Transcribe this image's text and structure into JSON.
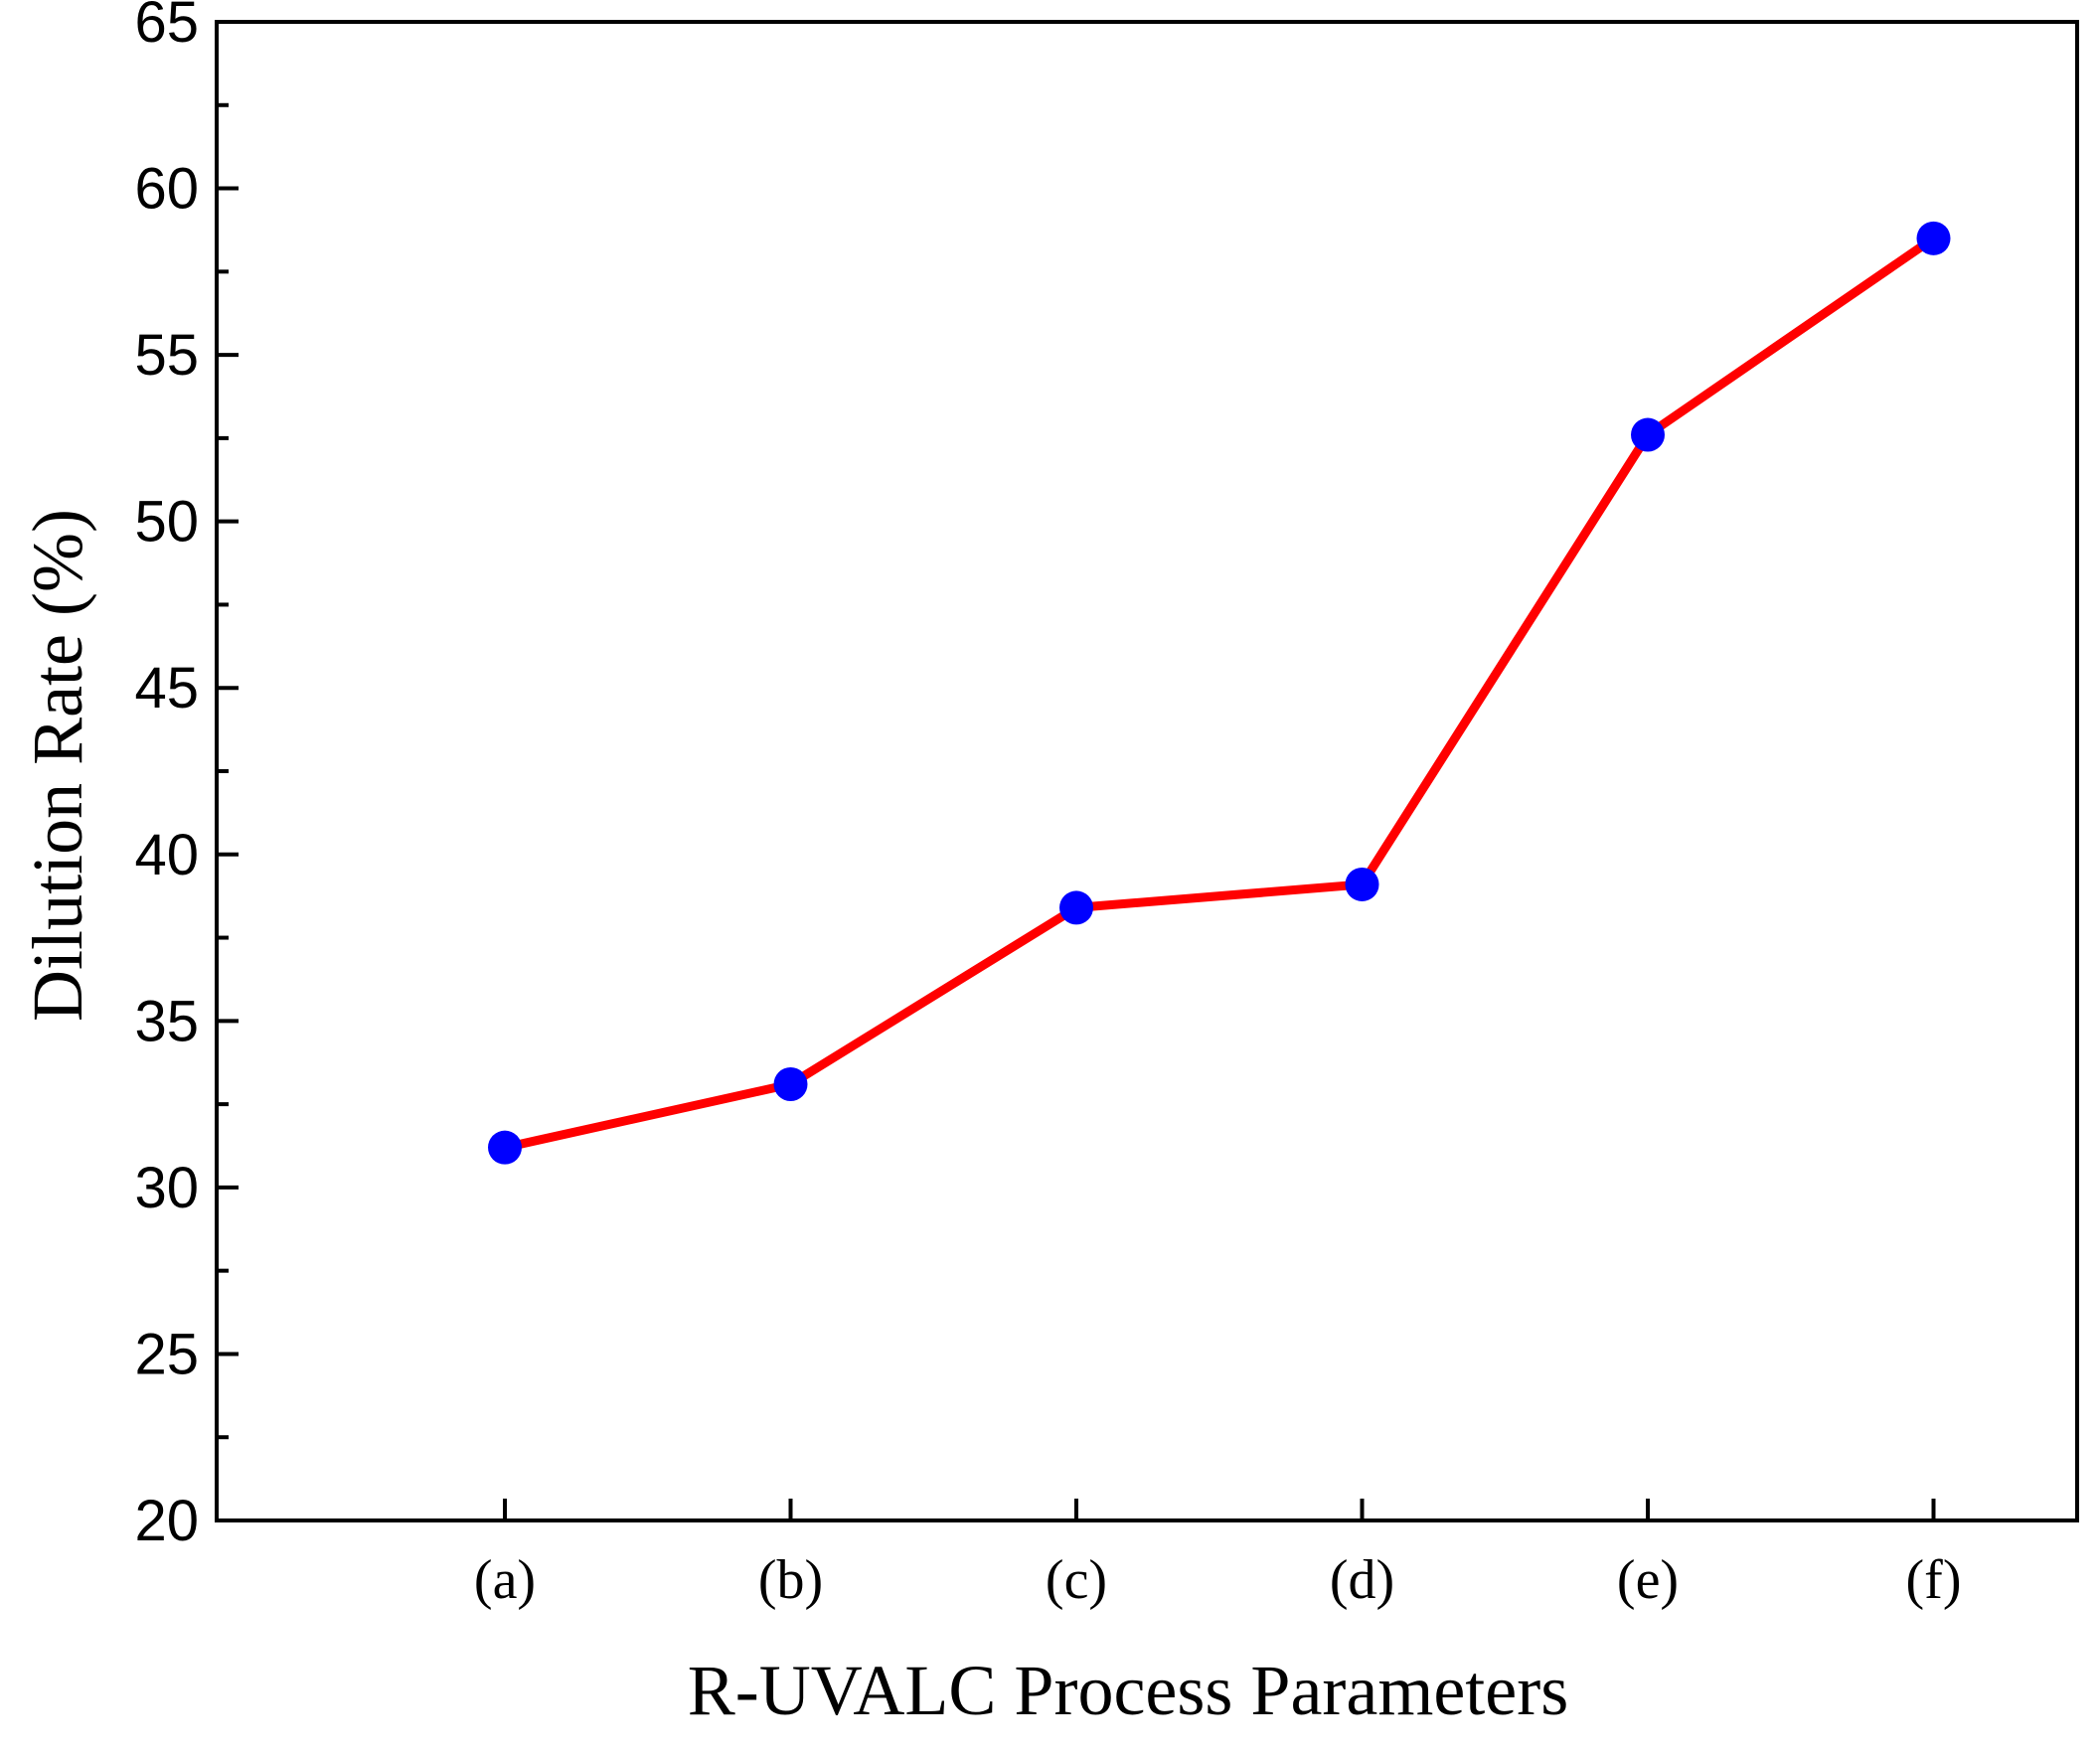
{
  "chart_data": {
    "type": "line",
    "title": "",
    "xlabel": "R-UVALC Process Parameters",
    "ylabel": "Dilution Rate (%)",
    "categories": [
      "(a)",
      "(b)",
      "(c)",
      "(d)",
      "(e)",
      "(f)"
    ],
    "series": [
      {
        "name": "Dilution Rate",
        "values": [
          31.2,
          33.1,
          38.4,
          39.1,
          52.6,
          58.5
        ]
      }
    ],
    "ylim": [
      20,
      65
    ],
    "yticks": [
      "20",
      "25",
      "30",
      "35",
      "40",
      "45",
      "50",
      "55",
      "60",
      "65"
    ],
    "grid": false,
    "legend": "none",
    "colors": {
      "line": "#ff0000",
      "marker": "#0000ff",
      "axis": "#000000"
    }
  }
}
